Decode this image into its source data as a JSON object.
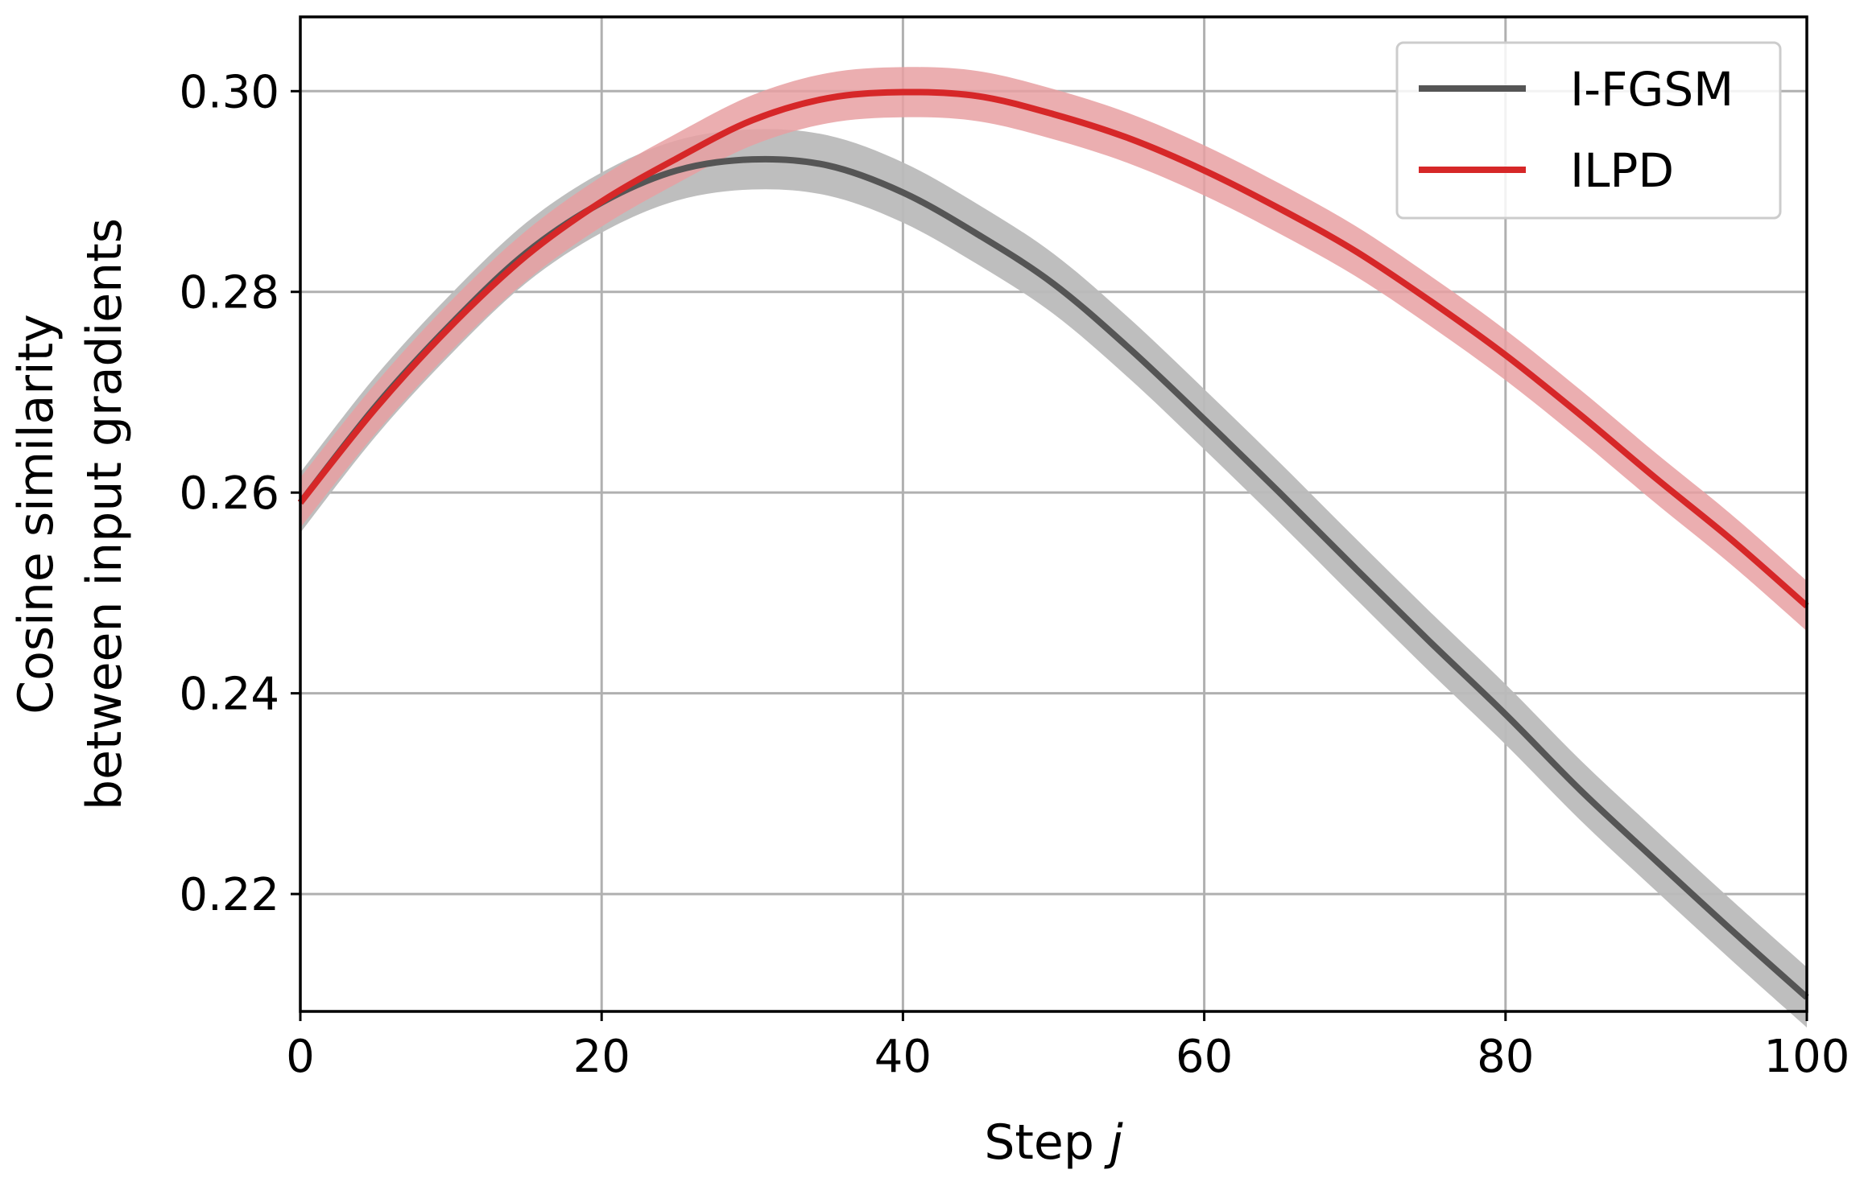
{
  "chart_data": {
    "type": "line",
    "xlabel": "Step",
    "xlabel_var": "j",
    "ylabel_line1": "Cosine similarity",
    "ylabel_line2": "between input gradients",
    "xlim": [
      0,
      100
    ],
    "ylim": [
      0.2083,
      0.3074
    ],
    "x_ticks": [
      0,
      20,
      40,
      60,
      80,
      100
    ],
    "x_tick_labels": [
      "0",
      "20",
      "40",
      "60",
      "80",
      "100"
    ],
    "y_ticks": [
      0.22,
      0.24,
      0.26,
      0.28,
      0.3
    ],
    "y_tick_labels": [
      "0.22",
      "0.24",
      "0.26",
      "0.28",
      "0.30"
    ],
    "grid": true,
    "legend_position": "top-right",
    "series": [
      {
        "name": "I-FGSM",
        "color": "#555555",
        "band_color": "#bbbbbb",
        "x": [
          0,
          5,
          10,
          15,
          20,
          25,
          30,
          35,
          40,
          45,
          50,
          55,
          60,
          65,
          70,
          75,
          80,
          85,
          90,
          95,
          100
        ],
        "values": [
          0.259,
          0.2686,
          0.2768,
          0.2839,
          0.2889,
          0.2921,
          0.2932,
          0.2926,
          0.2899,
          0.2857,
          0.2808,
          0.2744,
          0.2673,
          0.26,
          0.2525,
          0.2451,
          0.2379,
          0.2303,
          0.2233,
          0.2164,
          0.2097
        ],
        "band_halfwidth": 0.003
      },
      {
        "name": "ILPD",
        "color": "#d62728",
        "band_color": "#e8a0a2",
        "x": [
          0,
          5,
          10,
          15,
          20,
          25,
          30,
          35,
          40,
          45,
          50,
          55,
          60,
          65,
          70,
          75,
          80,
          85,
          90,
          95,
          100
        ],
        "values": [
          0.259,
          0.2684,
          0.2766,
          0.2836,
          0.289,
          0.2933,
          0.2971,
          0.2993,
          0.2999,
          0.2995,
          0.2977,
          0.2953,
          0.2921,
          0.2883,
          0.2841,
          0.2791,
          0.2737,
          0.2677,
          0.2614,
          0.2553,
          0.2487
        ],
        "band_halfwidth": 0.0025
      }
    ]
  }
}
